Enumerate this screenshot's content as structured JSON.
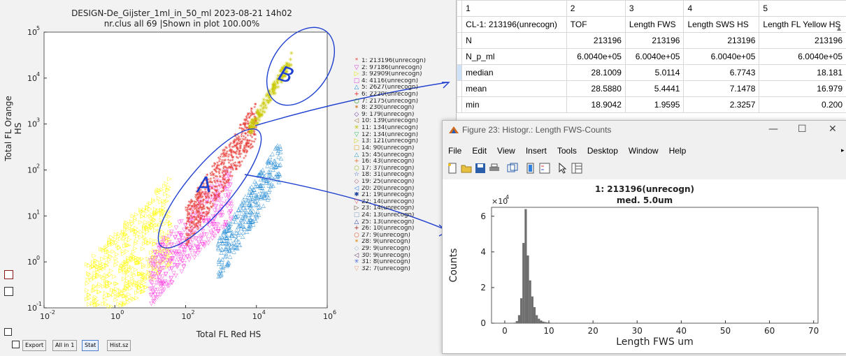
{
  "scatter": {
    "title_line1": "DESIGN-De_Gijster_1ml_in_50_ml 2023-08-21 14h02",
    "title_line2": "nr.clus all 69 |Shown in plot 100.00%",
    "xlabel": "Total FL Red HS",
    "ylabel": "Total FL Orange HS",
    "x_ticks": [
      "10",
      "10",
      "10",
      "10",
      "10"
    ],
    "x_tick_exps": [
      "-2",
      "0",
      "2",
      "4",
      "6"
    ],
    "y_ticks": [
      "10",
      "10",
      "10",
      "10",
      "10",
      "10",
      "10"
    ],
    "y_tick_exps": [
      "-1",
      "0",
      "1",
      "2",
      "3",
      "4",
      "5"
    ],
    "annotation_a": "A",
    "annotation_b": "B",
    "colors": {
      "red": "#e8413c",
      "magenta": "#ff3ce0",
      "yellow": "#ffff00",
      "blue": "#2c8fd6",
      "olive": "#c8c800",
      "green": "#33cc33"
    }
  },
  "legend": [
    {
      "marker": "*",
      "color": "#e8413c",
      "label": "1: 213196(unrecogn)"
    },
    {
      "marker": "▽",
      "color": "#d040d0",
      "label": "2: 97186(unrecogn)"
    },
    {
      "marker": "▷",
      "color": "#e8e800",
      "label": "3: 92909(unrecogn)"
    },
    {
      "marker": "□",
      "color": "#e040e0",
      "label": "4: 4116(unrecogn)"
    },
    {
      "marker": "△",
      "color": "#2c8fd6",
      "label": "5: 2627(unrecogn)"
    },
    {
      "marker": "+",
      "color": "#e02020",
      "label": "6: 2220(unrecogn)"
    },
    {
      "marker": "○",
      "color": "#209020",
      "label": "7: 2175(unrecogn)"
    },
    {
      "marker": "✶",
      "color": "#d08030",
      "label": "8: 230(unrecogn)"
    },
    {
      "marker": "◇",
      "color": "#7030a0",
      "label": "9: 179(unrecogn)"
    },
    {
      "marker": "◁",
      "color": "#a07040",
      "label": "10: 139(unrecogn)"
    },
    {
      "marker": "✳",
      "color": "#c0c000",
      "label": "11: 134(unrecogn)"
    },
    {
      "marker": "▽",
      "color": "#30c060",
      "label": "12: 134(unrecogn)"
    },
    {
      "marker": "▷",
      "color": "#d0d000",
      "label": "13: 121(unrecogn)"
    },
    {
      "marker": "□",
      "color": "#e0a020",
      "label": "14: 90(unrecogn)"
    },
    {
      "marker": "△",
      "color": "#30a0c0",
      "label": "15: 45(unrecogn)"
    },
    {
      "marker": "+",
      "color": "#e07030",
      "label": "16: 43(unrecogn)"
    },
    {
      "marker": "○",
      "color": "#a0c030",
      "label": "17: 37(unrecogn)"
    },
    {
      "marker": "☆",
      "color": "#3060c0",
      "label": "18: 31(unrecogn)"
    },
    {
      "marker": "◇",
      "color": "#a06070",
      "label": "19: 25(unrecogn)"
    },
    {
      "marker": "◁",
      "color": "#3080e0",
      "label": "20: 20(unrecogn)"
    },
    {
      "marker": "✱",
      "color": "#2040a0",
      "label": "21: 19(unrecogn)"
    },
    {
      "marker": "▽",
      "color": "#e05050",
      "label": "22: 14(unrecogn)"
    },
    {
      "marker": "▷",
      "color": "#604020",
      "label": "23: 14(unrecogn)"
    },
    {
      "marker": "□",
      "color": "#80a0c0",
      "label": "24: 13(unrecogn)"
    },
    {
      "marker": "△",
      "color": "#3040a0",
      "label": "25: 13(unrecogn)"
    },
    {
      "marker": "+",
      "color": "#a02020",
      "label": "26: 10(unrecogn)"
    },
    {
      "marker": "○",
      "color": "#e06040",
      "label": "27: 9(unrecogn)"
    },
    {
      "marker": "✶",
      "color": "#e0a040",
      "label": "28: 9(unrecogn)"
    },
    {
      "marker": "◇",
      "color": "#a0c0e0",
      "label": "29: 9(unrecogn)"
    },
    {
      "marker": "◁",
      "color": "#603060",
      "label": "30: 9(unrecogn)"
    },
    {
      "marker": "✳",
      "color": "#5070e0",
      "label": "31: 8(unrecogn)"
    },
    {
      "marker": "▽",
      "color": "#f0a080",
      "label": "32: 7(unrecogn)"
    }
  ],
  "buttons": {
    "export": "Export",
    "all_in_1": "All in 1",
    "stat": "Stat",
    "hist_sz": "Hist.sz"
  },
  "table": {
    "col_headers": [
      "1",
      "2",
      "3",
      "4",
      "5"
    ],
    "rows": [
      [
        "CL-1: 213196(unrecogn)",
        "TOF",
        "Length FWS",
        "Length SWS HS",
        "Length FL Yellow HS"
      ],
      [
        "N",
        "213196",
        "213196",
        "213196",
        "213196"
      ],
      [
        "N_p_ml",
        "6.0040e+05",
        "6.0040e+05",
        "6.0040e+05",
        "6.0040e+05"
      ],
      [
        "median",
        "28.1009",
        "5.0114",
        "6.7743",
        "18.181"
      ],
      [
        "mean",
        "28.5880",
        "5.4441",
        "7.1478",
        "16.979"
      ],
      [
        "min",
        "18.9042",
        "1.9595",
        "2.3257",
        "0.200"
      ]
    ]
  },
  "figure": {
    "window_title": "Figure 23: Histogr.: Length FWS-Counts",
    "menu": [
      "File",
      "Edit",
      "View",
      "Insert",
      "Tools",
      "Desktop",
      "Window",
      "Help"
    ],
    "plot_title1": "1: 213196(unrecogn)",
    "plot_title2": "med. 5.0um",
    "xlabel": "Length FWS um",
    "ylabel": "Counts",
    "multiplier": "×10",
    "multiplier_exp": "4"
  },
  "chart_data": {
    "type": "bar",
    "title": "1: 213196(unrecogn)",
    "subtitle": "med. 5.0um",
    "xlabel": "Length FWS um",
    "ylabel": "Counts",
    "xlim": [
      -3,
      71
    ],
    "ylim": [
      0,
      65000
    ],
    "x_ticks": [
      0,
      10,
      20,
      30,
      40,
      50,
      60,
      70
    ],
    "y_ticks": [
      0,
      2,
      4,
      6
    ],
    "y_scale_label": "×10^4",
    "bin_width": 0.5,
    "bins_x": [
      2.0,
      2.5,
      3.0,
      3.5,
      4.0,
      4.5,
      5.0,
      5.5,
      6.0,
      6.5,
      7.0,
      7.5,
      8.0,
      8.5,
      9.0,
      9.5,
      10.0,
      10.5,
      11.0,
      12.0,
      13.0,
      14.0,
      15.0
    ],
    "values": [
      300,
      1200,
      4500,
      14000,
      45000,
      64000,
      38000,
      24000,
      15000,
      9000,
      4500,
      2500,
      1500,
      900,
      600,
      400,
      280,
      200,
      150,
      100,
      80,
      60,
      40
    ]
  }
}
